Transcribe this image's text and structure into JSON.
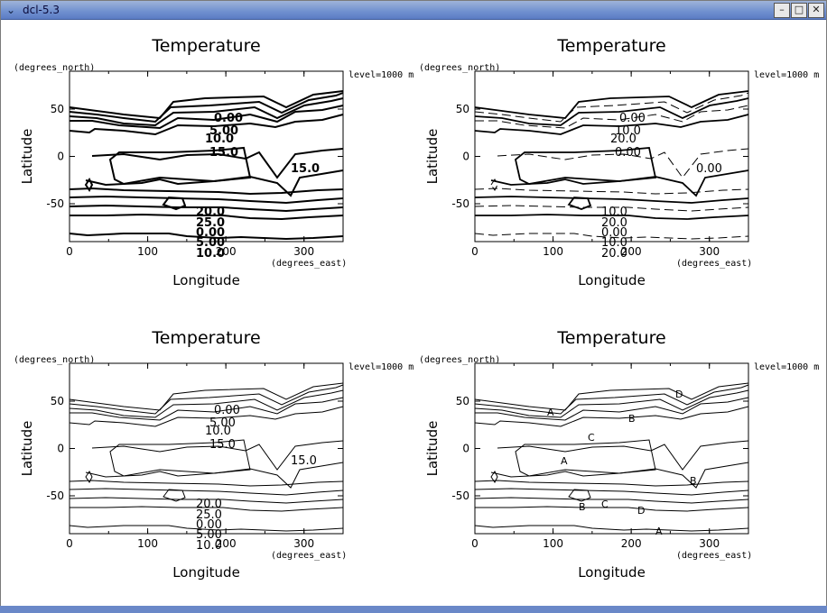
{
  "window": {
    "title": "dcl-5.3"
  },
  "chart_data": [
    {
      "type": "contour",
      "title": "Temperature",
      "xlabel": "Longitude",
      "ylabel": "Latitude",
      "xunit": "(degrees_east)",
      "yunit": "(degrees_north)",
      "side_text": "level=1000 m",
      "xlim": [
        0,
        350
      ],
      "ylim": [
        -90,
        90
      ],
      "xticks": [
        0,
        100,
        200,
        300
      ],
      "yticks": [
        -50,
        0,
        50
      ],
      "contour_labels": [
        "0.00",
        "5.00",
        "10.0",
        "15.0",
        "20.0",
        "25.0"
      ],
      "style": "thick-labeled"
    },
    {
      "type": "contour",
      "title": "Temperature",
      "xlabel": "Longitude",
      "ylabel": "Latitude",
      "xunit": "(degrees_east)",
      "yunit": "(degrees_north)",
      "side_text": "level=1000 m",
      "xlim": [
        0,
        350
      ],
      "ylim": [
        -90,
        90
      ],
      "xticks": [
        0,
        100,
        200,
        300
      ],
      "yticks": [
        -50,
        0,
        50
      ],
      "contour_labels": [
        "0.00",
        "10.0",
        "20.0"
      ],
      "style": "dashed-alternating"
    },
    {
      "type": "contour",
      "title": "Temperature",
      "xlabel": "Longitude",
      "ylabel": "Latitude",
      "xunit": "(degrees_east)",
      "yunit": "(degrees_north)",
      "side_text": "level=1000 m",
      "xlim": [
        0,
        350
      ],
      "ylim": [
        -90,
        90
      ],
      "xticks": [
        0,
        100,
        200,
        300
      ],
      "yticks": [
        -50,
        0,
        50
      ],
      "contour_labels": [
        "0.00",
        "5.00",
        "10.0",
        "15.0",
        "20.0",
        "25.0"
      ],
      "style": "thin-labeled"
    },
    {
      "type": "contour",
      "title": "Temperature",
      "xlabel": "Longitude",
      "ylabel": "Latitude",
      "xunit": "(degrees_east)",
      "yunit": "(degrees_north)",
      "side_text": "level=1000 m",
      "xlim": [
        0,
        350
      ],
      "ylim": [
        -90,
        90
      ],
      "xticks": [
        0,
        100,
        200,
        300
      ],
      "yticks": [
        -50,
        0,
        50
      ],
      "contour_labels": [
        "A",
        "B",
        "C",
        "D"
      ],
      "style": "thin-lettered"
    }
  ]
}
